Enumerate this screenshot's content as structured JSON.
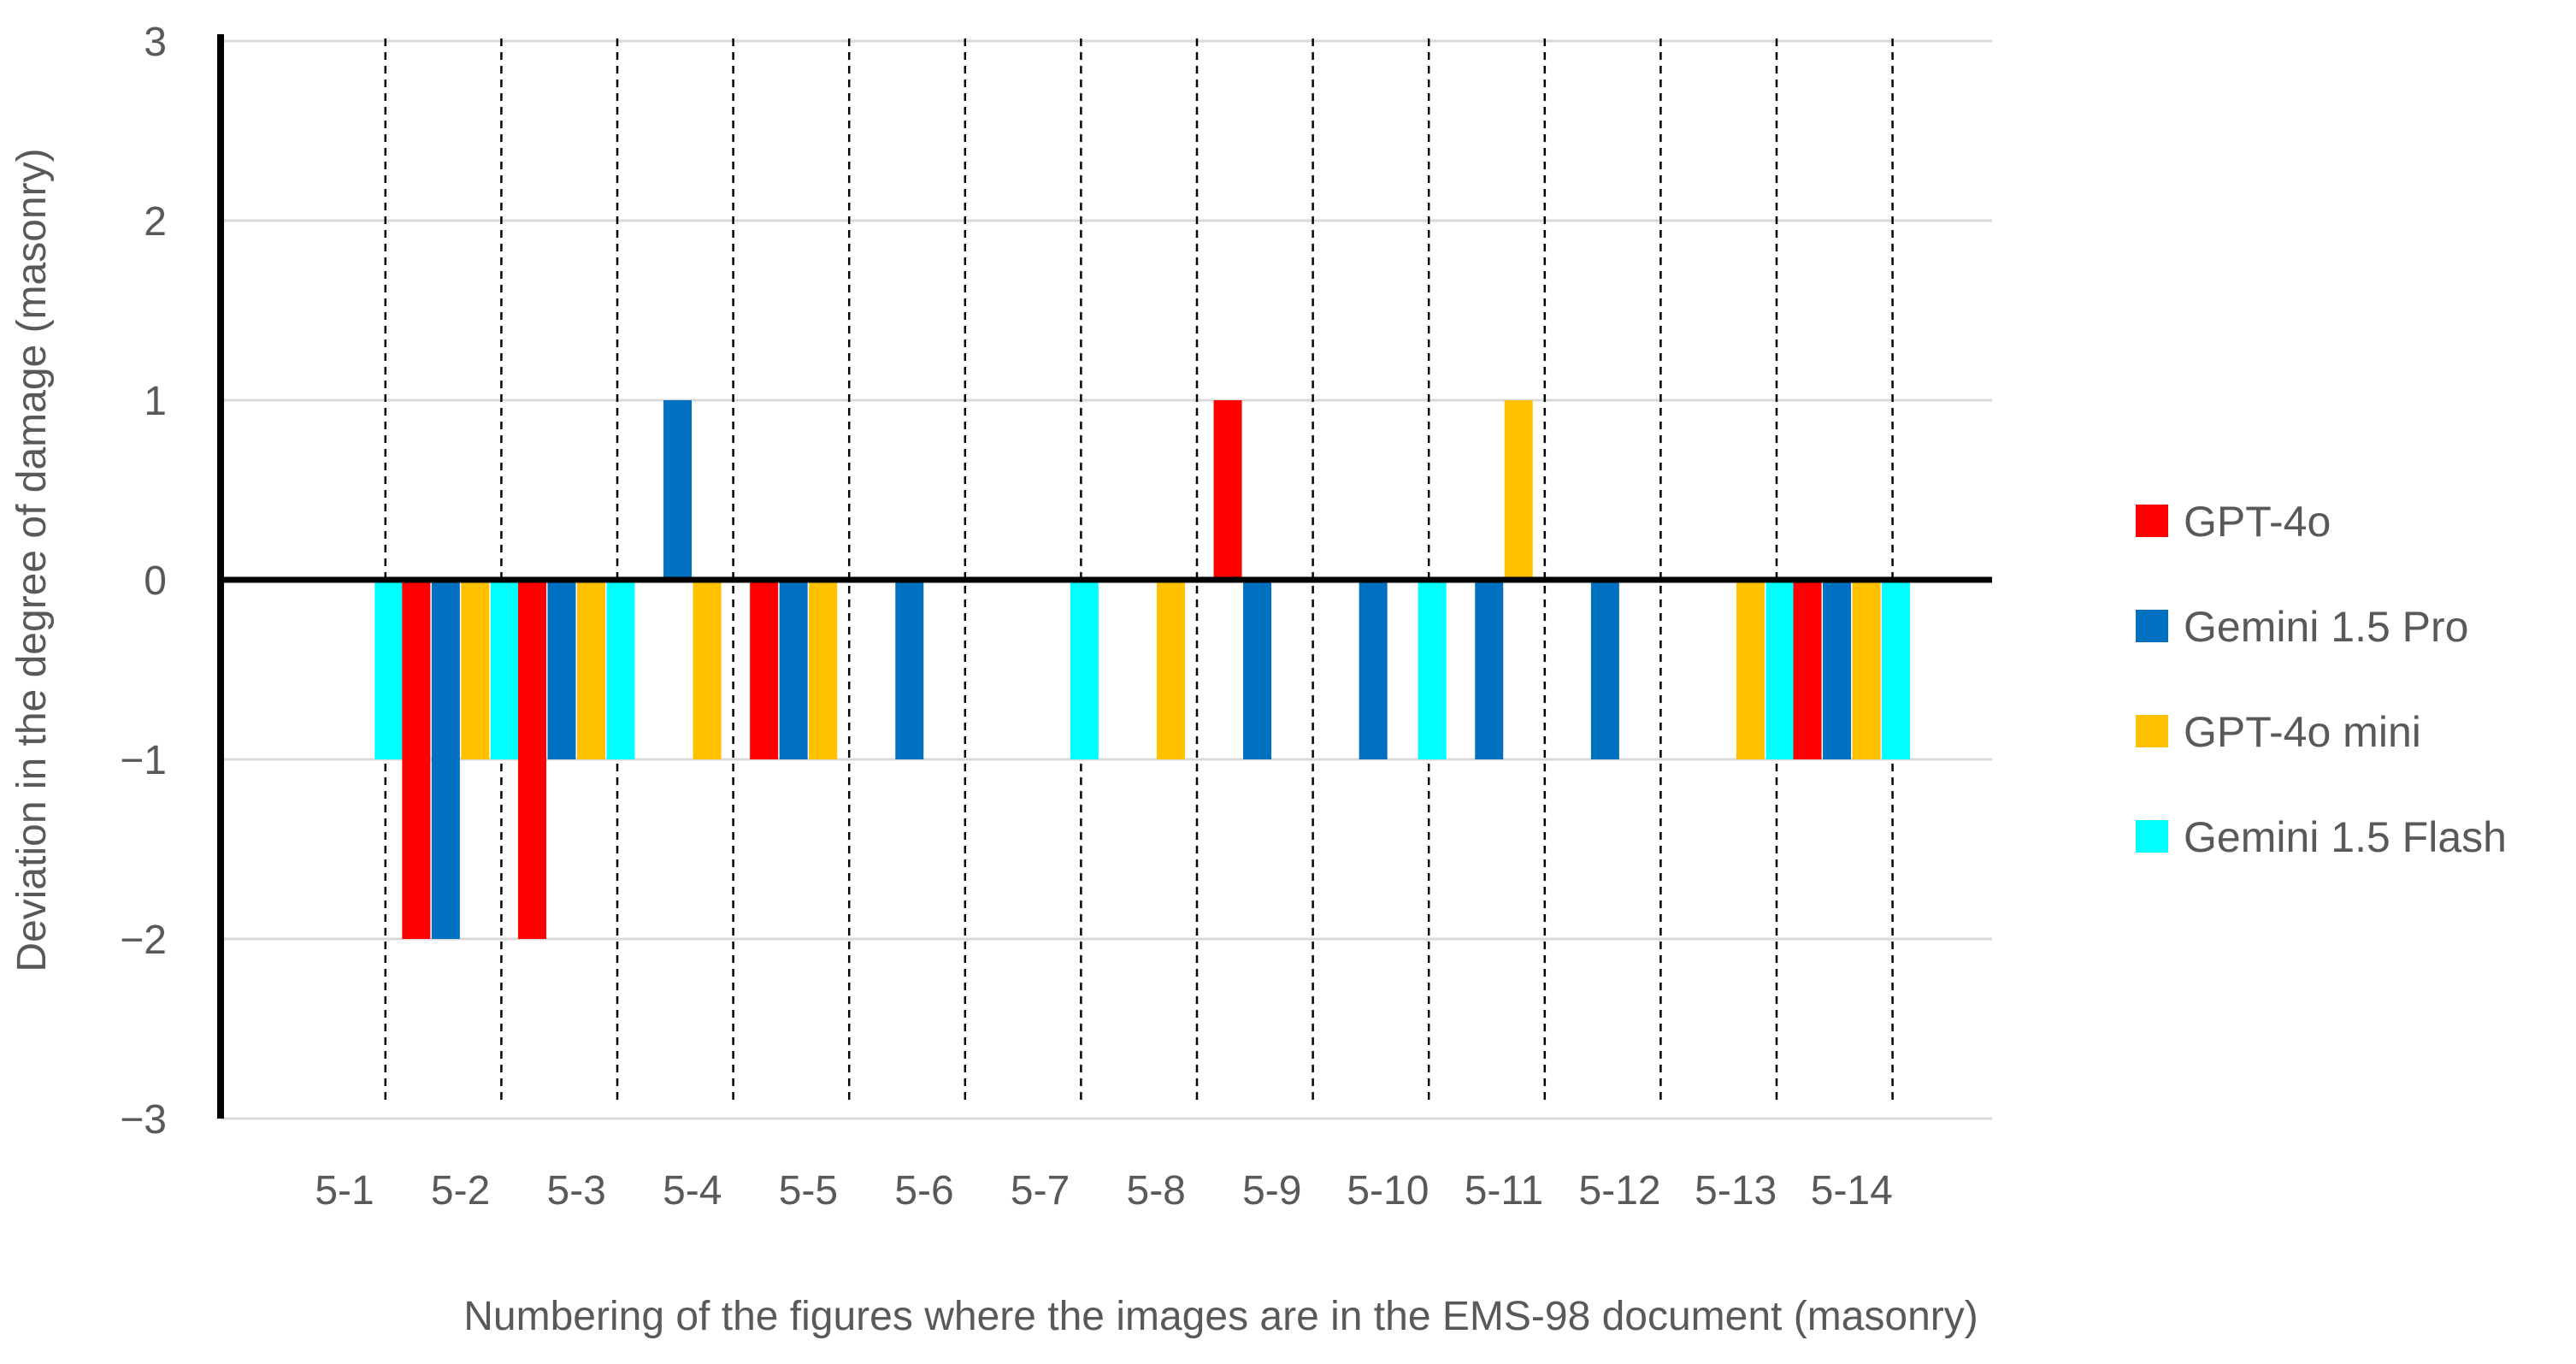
{
  "chart_data": {
    "type": "bar",
    "title": "",
    "xlabel": "Numbering of the figures where the images are in the EMS-98 document (masonry)",
    "ylabel": "Deviation in the degree of damage (masonry)",
    "ylim": [
      -3,
      3
    ],
    "yticks": [
      "3",
      "2",
      "1",
      "0",
      "−1",
      "−2",
      "−3"
    ],
    "ytick_values": [
      3,
      2,
      1,
      0,
      -1,
      -2,
      -3
    ],
    "grid": true,
    "legend_position": "right",
    "categories": [
      "5-1",
      "5-2",
      "5-3",
      "5-4",
      "5-5",
      "5-6",
      "5-7",
      "5-8",
      "5-9",
      "5-10",
      "5-11",
      "5-12",
      "5-13",
      "5-14"
    ],
    "series": [
      {
        "name": "GPT-4o",
        "color": "#ff0000",
        "values": [
          0,
          -2,
          -2,
          0,
          -1,
          0,
          0,
          0,
          1,
          0,
          0,
          0,
          0,
          -1
        ]
      },
      {
        "name": "Gemini 1.5 Pro",
        "color": "#0070c0",
        "values": [
          0,
          -2,
          -1,
          1,
          -1,
          -1,
          0,
          0,
          -1,
          -1,
          -1,
          -1,
          0,
          -1
        ]
      },
      {
        "name": "GPT-4o  mini",
        "color": "#ffc000",
        "values": [
          0,
          -1,
          -1,
          -1,
          -1,
          0,
          0,
          -1,
          0,
          0,
          1,
          0,
          -1,
          -1
        ]
      },
      {
        "name": "Gemini 1.5 Flash",
        "color": "#00ffff",
        "values": [
          -1,
          -1,
          -1,
          0,
          0,
          0,
          -1,
          0,
          0,
          -1,
          0,
          0,
          -1,
          -1
        ]
      }
    ]
  }
}
